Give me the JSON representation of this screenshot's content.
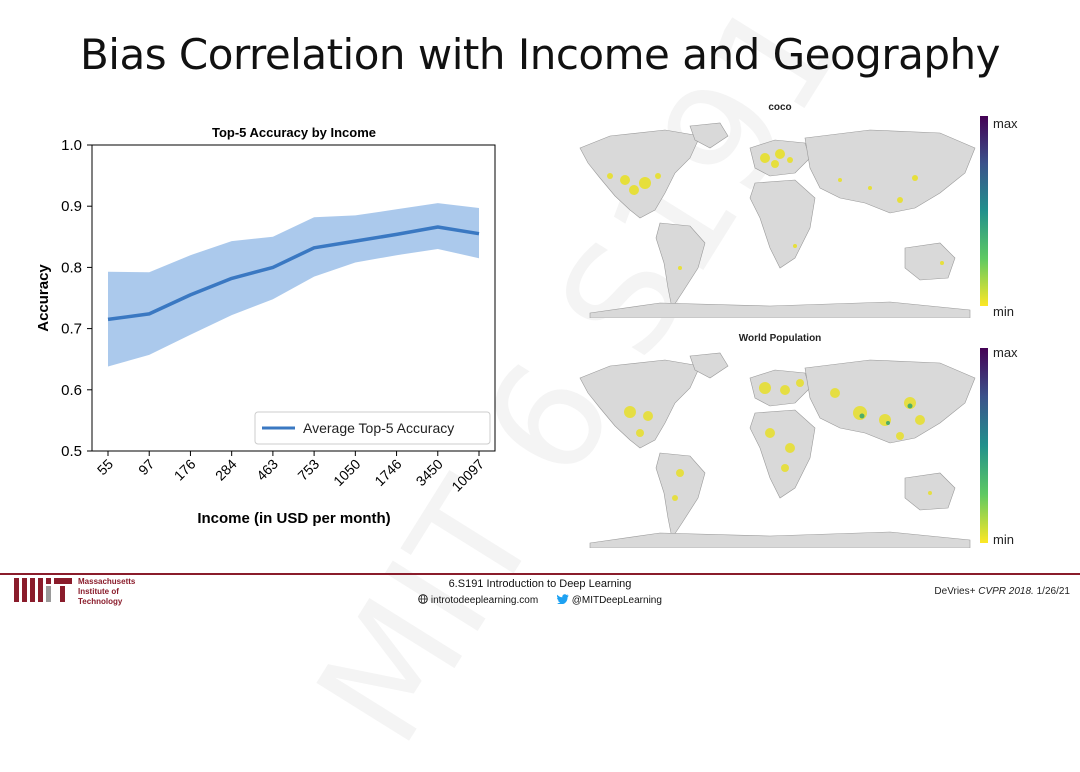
{
  "slide": {
    "title": "Bias Correlation with Income and Geography",
    "watermark": "MIT 6.S191"
  },
  "chart_data": {
    "type": "line",
    "title": "Top-5 Accuracy by Income",
    "xlabel": "Income (in USD per month)",
    "ylabel": "Accuracy",
    "categories": [
      "55",
      "97",
      "176",
      "284",
      "463",
      "753",
      "1050",
      "1746",
      "3450",
      "10097"
    ],
    "series": [
      {
        "name": "Average Top-5 Accuracy",
        "values": [
          0.715,
          0.724,
          0.755,
          0.782,
          0.8,
          0.832,
          0.843,
          0.854,
          0.866,
          0.855
        ],
        "lower": [
          0.638,
          0.657,
          0.69,
          0.722,
          0.748,
          0.785,
          0.808,
          0.82,
          0.83,
          0.815
        ],
        "upper": [
          0.793,
          0.792,
          0.82,
          0.843,
          0.85,
          0.882,
          0.885,
          0.895,
          0.905,
          0.897
        ],
        "color": "#3a78c2",
        "band_color": "#9cc0e9"
      }
    ],
    "ylim": [
      0.5,
      1.0
    ],
    "yticks": [
      "1.0",
      "0.9",
      "0.8",
      "0.7",
      "0.6",
      "0.5"
    ],
    "grid": false,
    "legend": "lower-right"
  },
  "maps": [
    {
      "title": "coco",
      "cbar_max": "max",
      "cbar_min": "min"
    },
    {
      "title": "World Population",
      "cbar_max": "max",
      "cbar_min": "min"
    }
  ],
  "footer": {
    "institution": "Massachusetts Institute of Technology",
    "course": "6.S191 Introduction to Deep Learning",
    "website": "introtodeeplearning.com",
    "twitter": "@MITDeepLearning",
    "citation_authors": "DeVries+",
    "citation_venue": "CVPR 2018.",
    "citation_date": "1/26/21"
  },
  "colors": {
    "footer_accent": "#8a1c2b",
    "land": "#d9d9d9",
    "hotspot": "#e8e02a"
  }
}
